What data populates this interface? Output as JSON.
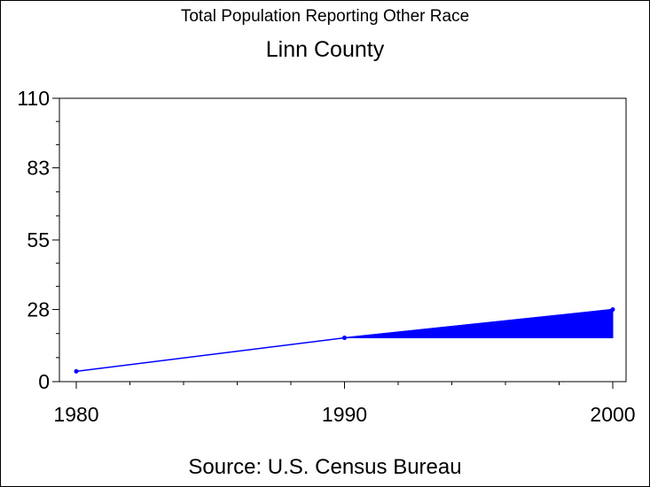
{
  "chart_data": {
    "type": "line",
    "title": "Total Population Reporting Other Race",
    "subtitle": "Linn County",
    "footnote": "Source: U.S. Census Bureau",
    "x": [
      1980,
      1990,
      2000
    ],
    "x_tick_labels": [
      "1980",
      "1990",
      "2000"
    ],
    "y_tick_labels": [
      "0",
      "28",
      "55",
      "83",
      "110"
    ],
    "y_ticks": [
      0,
      28,
      55,
      83,
      110
    ],
    "xlim": [
      1980,
      2000
    ],
    "ylim": [
      0,
      110
    ],
    "series": [
      {
        "values": [
          4,
          17,
          28
        ],
        "color": "#0000ff"
      }
    ],
    "shaded_band": {
      "x": [
        1990,
        2000
      ],
      "lower": [
        17,
        17
      ],
      "upper": [
        17,
        28
      ],
      "color": "#0000ff"
    },
    "grid": false,
    "legend": "none"
  }
}
